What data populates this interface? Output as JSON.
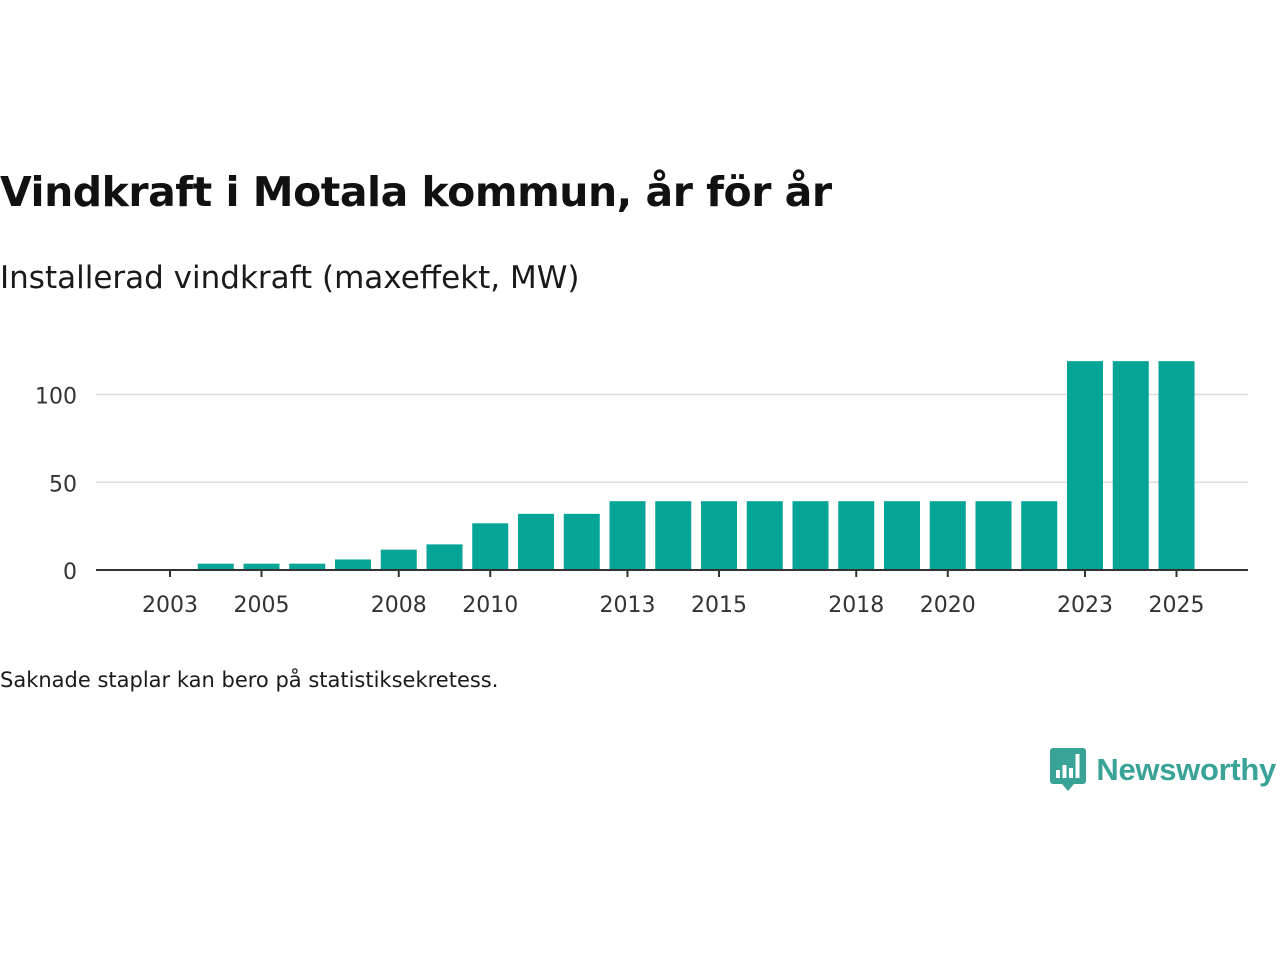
{
  "header": {
    "title": "Vindkraft i Motala kommun, år för år",
    "subtitle": "Installerad vindkraft (maxeffekt, MW)"
  },
  "footer": {
    "note": "Saknade staplar kan bero på statistiksekretess.",
    "brand": "Newsworthy",
    "brand_icon": "bar-chart-speech-bubble-icon"
  },
  "colors": {
    "bar": "#04a497",
    "grid": "#dddddd",
    "axis": "#333333",
    "brand": "#3aa397"
  },
  "chart_data": {
    "type": "bar",
    "title": "Vindkraft i Motala kommun, år för år",
    "subtitle": "Installerad vindkraft (maxeffekt, MW)",
    "xlabel": "",
    "ylabel": "",
    "categories": [
      "2003",
      "2004",
      "2005",
      "2006",
      "2007",
      "2008",
      "2009",
      "2010",
      "2011",
      "2012",
      "2013",
      "2014",
      "2015",
      "2016",
      "2017",
      "2018",
      "2019",
      "2020",
      "2021",
      "2022",
      "2023",
      "2024",
      "2025"
    ],
    "values": [
      0,
      3.6,
      3.6,
      3.6,
      6,
      11.6,
      14.6,
      26.6,
      32,
      32,
      39.2,
      39.2,
      39.2,
      39.2,
      39.2,
      39.2,
      39.2,
      39.2,
      39.2,
      39.2,
      119,
      119,
      119
    ],
    "x_tick_labels": [
      "2003",
      "2005",
      "2008",
      "2010",
      "2013",
      "2015",
      "2018",
      "2020",
      "2023",
      "2025"
    ],
    "y_ticks": [
      0,
      50,
      100
    ],
    "ylim": [
      0,
      120
    ],
    "grid": true,
    "legend": "none"
  }
}
